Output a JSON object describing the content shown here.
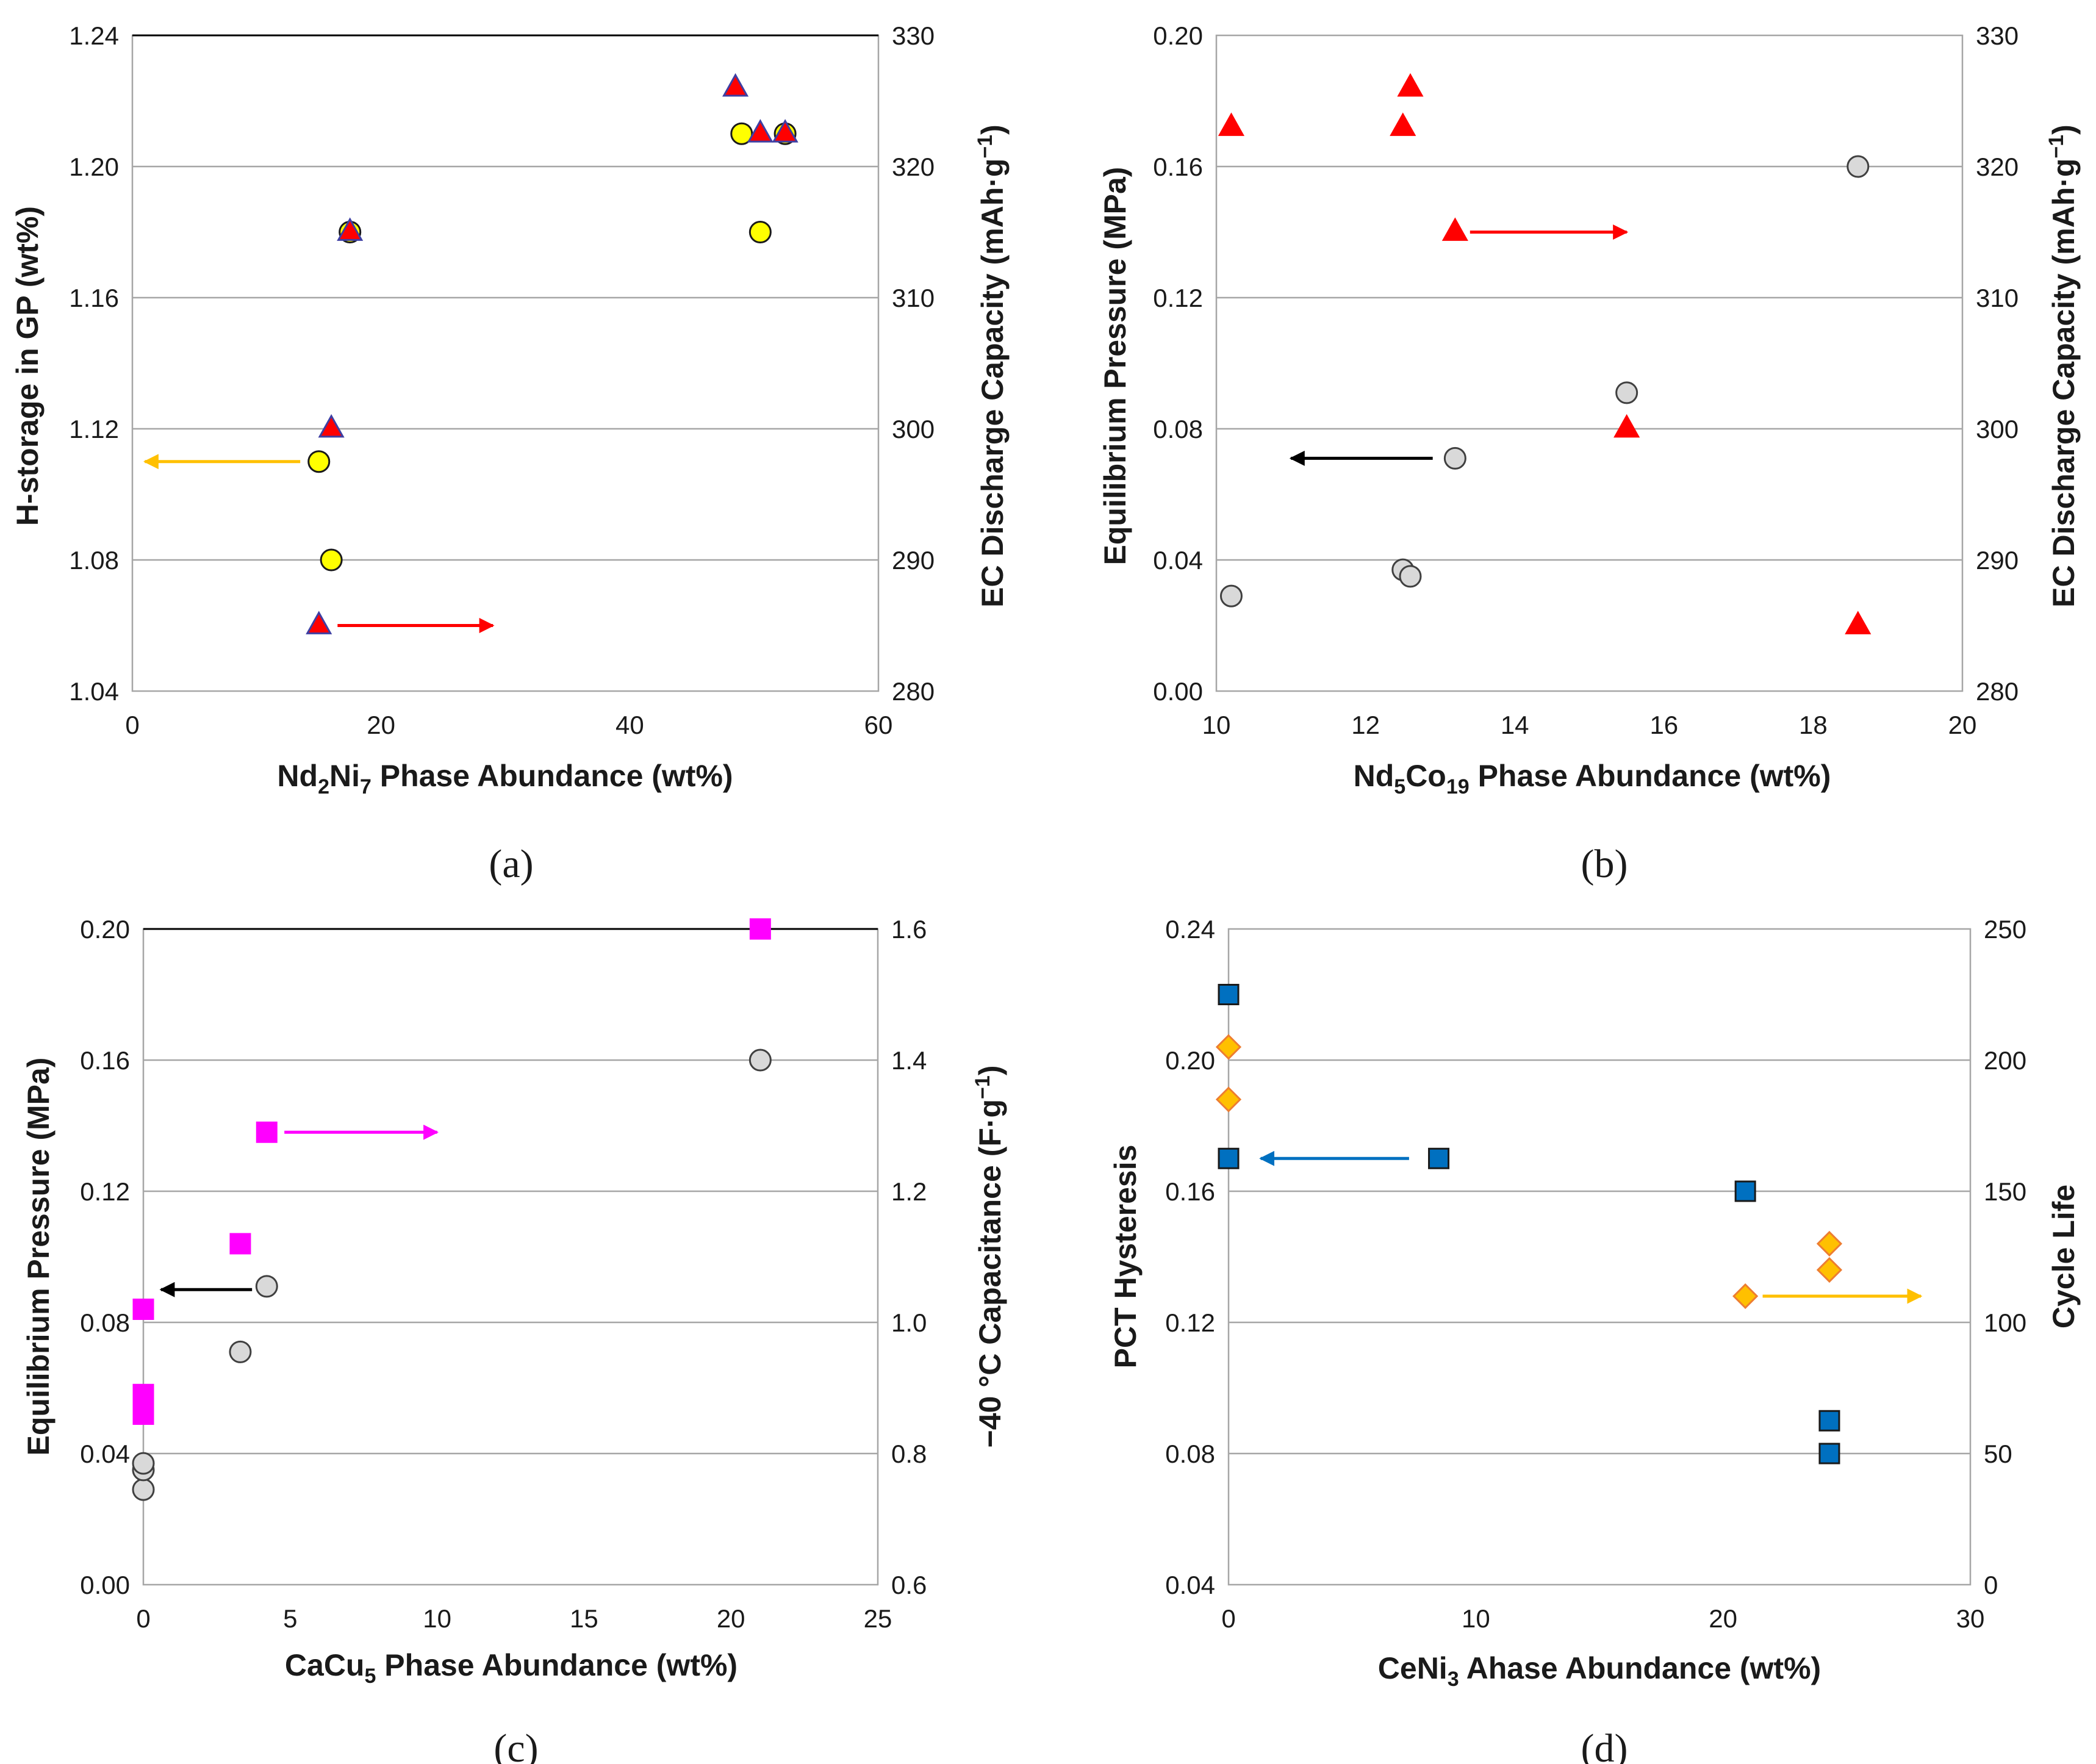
{
  "colors": {
    "red": "#ff0000",
    "navy": "#3e3fa3",
    "yellow": "#ffff00",
    "gray": "#d9d9d9",
    "magenta": "#ff00ff",
    "blue": "#0070c0",
    "orange": "#ffc000",
    "diamond_edge": "#ed7d31",
    "gold_arrow": "#ffc000",
    "black": "#000000"
  },
  "chart_data": [
    {
      "id": "a",
      "panel_label": "(a)",
      "type": "scatter",
      "xlabel": "Nd2Ni7 Phase Abundance (wt%)",
      "xlabel_parts": {
        "pre": "Nd",
        "sub1": "2",
        "mid": "Ni",
        "sub2": "7",
        "post": " Phase Abundance (wt%)"
      },
      "ylabel_left": "H-storage in GP (wt%)",
      "ylabel_right": "EC Discharge Capacity (mAh·g−1)",
      "ylabel_right_parts": {
        "pre": "EC Discharge Capacity (mAh·g",
        "sup": "−1",
        "post": ")"
      },
      "xlim": [
        0,
        60
      ],
      "xticks": [
        "0",
        "20",
        "40",
        "60"
      ],
      "ylim_left": [
        1.04,
        1.24
      ],
      "yticks_left": [
        "1.04",
        "1.08",
        "1.12",
        "1.16",
        "1.20",
        "1.24"
      ],
      "ylim_right": [
        280,
        330
      ],
      "yticks_right": [
        "280",
        "290",
        "300",
        "310",
        "320",
        "330"
      ],
      "series": [
        {
          "name": "H-storage",
          "axis": "left",
          "marker": "circle",
          "fill": "#ffff00",
          "stroke": "#1a1a1a",
          "x": [
            15,
            16,
            17.5,
            49,
            50.5,
            52.5
          ],
          "y": [
            1.11,
            1.08,
            1.18,
            1.21,
            1.18,
            1.21
          ]
        },
        {
          "name": "Discharge capacity",
          "axis": "right",
          "marker": "triangle",
          "fill": "#ff0000",
          "stroke": "#3e3fa3",
          "x": [
            15,
            16,
            17.5,
            48.5,
            50.5,
            52.5
          ],
          "y": [
            285,
            300,
            315,
            326,
            322.5,
            322.5
          ]
        }
      ],
      "arrows": [
        {
          "color": "#ffc000",
          "axis": "left",
          "y": 1.11,
          "x_from": 13.5,
          "x_to": 1
        },
        {
          "color": "#ff0000",
          "axis": "right",
          "y": 285,
          "x_from": 16.5,
          "x_to": 29
        }
      ]
    },
    {
      "id": "b",
      "panel_label": "(b)",
      "type": "scatter",
      "xlabel": "Nd5Co19 Phase Abundance (wt%)",
      "xlabel_parts": {
        "pre": "Nd",
        "sub1": "5",
        "mid": "Co",
        "sub2": "19",
        "post": " Phase Abundance (wt%)"
      },
      "ylabel_left": "Equilibrium Pressure (MPa)",
      "ylabel_right": "EC Discharge Capacity (mAh·g−1)",
      "ylabel_right_parts": {
        "pre": "EC Discharge Capacity (mAh·g",
        "sup": "−1",
        "post": ")"
      },
      "xlim": [
        10,
        20
      ],
      "xticks": [
        "10",
        "12",
        "14",
        "16",
        "18",
        "20"
      ],
      "ylim_left": [
        0,
        0.2
      ],
      "yticks_left": [
        "0.00",
        "0.04",
        "0.08",
        "0.12",
        "0.16",
        "0.20"
      ],
      "ylim_right": [
        280,
        330
      ],
      "yticks_right": [
        "280",
        "290",
        "300",
        "310",
        "320",
        "330"
      ],
      "series": [
        {
          "name": "Equilibrium pressure",
          "axis": "left",
          "marker": "circle",
          "fill": "#d9d9d9",
          "stroke": "#404040",
          "x": [
            10.2,
            12.5,
            12.6,
            13.2,
            15.5,
            18.6
          ],
          "y": [
            0.029,
            0.037,
            0.035,
            0.071,
            0.091,
            0.16
          ]
        },
        {
          "name": "Discharge capacity",
          "axis": "right",
          "marker": "triangle",
          "fill": "#ff0000",
          "stroke": "#ff0000",
          "x": [
            10.2,
            12.5,
            12.6,
            13.2,
            15.5,
            18.6
          ],
          "y": [
            323,
            323,
            326,
            315,
            300,
            285
          ]
        }
      ],
      "arrows": [
        {
          "color": "#000000",
          "axis": "left",
          "y": 0.071,
          "x_from": 12.9,
          "x_to": 11.0
        },
        {
          "color": "#ff0000",
          "axis": "right",
          "y": 315,
          "x_from": 13.4,
          "x_to": 15.5
        }
      ]
    },
    {
      "id": "c",
      "panel_label": "(c)",
      "type": "scatter",
      "xlabel": "CaCu5 Phase Abundance (wt%)",
      "xlabel_parts": {
        "pre": "CaCu",
        "sub1": "5",
        "mid": "",
        "sub2": "",
        "post": " Phase Abundance (wt%)"
      },
      "ylabel_left": "Equilibrium Pressure (MPa)",
      "ylabel_right": "−40 °C Capacitance (F·g−1)",
      "ylabel_right_parts": {
        "pre": "−40 °C Capacitance (F·g",
        "sup": "−1",
        "post": ")"
      },
      "xlim": [
        0,
        25
      ],
      "xticks": [
        "0",
        "5",
        "10",
        "15",
        "20",
        "25"
      ],
      "ylim_left": [
        0,
        0.2
      ],
      "yticks_left": [
        "0.00",
        "0.04",
        "0.08",
        "0.12",
        "0.16",
        "0.20"
      ],
      "ylim_right": [
        0.6,
        1.6
      ],
      "yticks_right": [
        "0.6",
        "0.8",
        "1.0",
        "1.2",
        "1.4",
        "1.6"
      ],
      "series": [
        {
          "name": "Equilibrium pressure",
          "axis": "left",
          "marker": "circle",
          "fill": "#d9d9d9",
          "stroke": "#404040",
          "x": [
            0,
            0,
            0,
            3.3,
            4.2,
            21
          ],
          "y": [
            0.029,
            0.035,
            0.037,
            0.071,
            0.091,
            0.16
          ]
        },
        {
          "name": "Capacitance",
          "axis": "right",
          "marker": "square",
          "fill": "#ff00ff",
          "stroke": "#ff00ff",
          "x": [
            0,
            0,
            0,
            3.3,
            4.2,
            21
          ],
          "y": [
            0.86,
            0.89,
            1.02,
            1.12,
            1.29,
            1.6
          ]
        }
      ],
      "arrows": [
        {
          "color": "#000000",
          "axis": "left",
          "y": 0.09,
          "x_from": 3.7,
          "x_to": 0.6
        },
        {
          "color": "#ff00ff",
          "axis": "right",
          "y": 1.29,
          "x_from": 4.8,
          "x_to": 10
        }
      ]
    },
    {
      "id": "d",
      "panel_label": "(d)",
      "type": "scatter",
      "xlabel": "CeNi3 Ahase Abundance (wt%)",
      "xlabel_parts": {
        "pre": "CeNi",
        "sub1": "3",
        "mid": "",
        "sub2": "",
        "post": " Ahase Abundance (wt%)"
      },
      "ylabel_left": "PCT Hysteresis",
      "ylabel_right": "Cycle Life",
      "xlim": [
        0,
        30
      ],
      "xticks": [
        "0",
        "10",
        "20",
        "30"
      ],
      "ylim_left": [
        0.04,
        0.24
      ],
      "yticks_left": [
        "0.04",
        "0.08",
        "0.12",
        "0.16",
        "0.20",
        "0.24"
      ],
      "ylim_right": [
        0,
        250
      ],
      "yticks_right": [
        "0",
        "50",
        "100",
        "150",
        "200",
        "250"
      ],
      "series": [
        {
          "name": "PCT hysteresis",
          "axis": "left",
          "marker": "square",
          "fill": "#0070c0",
          "stroke": "#1a1a1a",
          "x": [
            0,
            0,
            8.5,
            20.9,
            24.3,
            24.3
          ],
          "y": [
            0.22,
            0.17,
            0.17,
            0.16,
            0.09,
            0.08
          ]
        },
        {
          "name": "Cycle life",
          "axis": "right",
          "marker": "diamond",
          "fill": "#ffc000",
          "stroke": "#ed7d31",
          "x": [
            0,
            0,
            20.9,
            24.3,
            24.3
          ],
          "y": [
            205,
            185,
            110,
            130,
            120
          ]
        }
      ],
      "arrows": [
        {
          "color": "#0070c0",
          "axis": "left",
          "y": 0.17,
          "x_from": 7.3,
          "x_to": 1.3
        },
        {
          "color": "#ffc000",
          "axis": "right",
          "y": 110,
          "x_from": 21.6,
          "x_to": 28
        }
      ]
    }
  ]
}
